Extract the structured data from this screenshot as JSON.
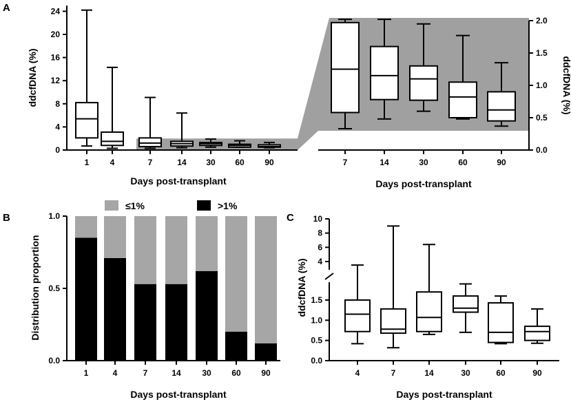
{
  "figure": {
    "panels": [
      "A",
      "B",
      "C"
    ],
    "zoom_fill": "#a0a0a0",
    "colors": {
      "gt1": "#000000",
      "le1": "#a6a6a6",
      "box": "#ffffff",
      "line": "#000000"
    }
  },
  "chart_data": [
    {
      "id": "A-main",
      "type": "box",
      "title": "",
      "xlabel": "Days post-transplant",
      "ylabel": "ddcfDNA (%)",
      "ylim": [
        0,
        25
      ],
      "yticks": [
        0,
        4,
        8,
        12,
        16,
        20,
        24
      ],
      "yticklabels": [
        "0",
        "4",
        "8",
        "12",
        "16",
        "20",
        "24"
      ],
      "categories": [
        "1",
        "4",
        "7",
        "14",
        "30",
        "60",
        "90"
      ],
      "boxes": [
        {
          "min": 0.7,
          "q1": 2.1,
          "median": 5.4,
          "q3": 8.2,
          "max": 24.2
        },
        {
          "min": 0.3,
          "q1": 0.8,
          "median": 1.5,
          "q3": 3.1,
          "max": 14.3
        },
        {
          "min": 0.3,
          "q1": 0.6,
          "median": 1.2,
          "q3": 2.1,
          "max": 9.1
        },
        {
          "min": 0.4,
          "q1": 0.7,
          "median": 1.1,
          "q3": 1.5,
          "max": 6.4
        },
        {
          "min": 0.5,
          "q1": 0.8,
          "median": 1.1,
          "q3": 1.3,
          "max": 1.9
        },
        {
          "min": 0.5,
          "q1": 0.5,
          "median": 0.8,
          "q3": 1.0,
          "max": 1.6
        },
        {
          "min": 0.4,
          "q1": 0.5,
          "median": 0.6,
          "q3": 0.9,
          "max": 1.3
        }
      ],
      "zoom_region": {
        "from_category": "7",
        "to_category": "90",
        "ymax": 2
      }
    },
    {
      "id": "A-zoom",
      "type": "box",
      "title": "",
      "xlabel": "Days post-transplant",
      "ylabel": "ddcfDNA (%)",
      "ylim": [
        0,
        2
      ],
      "yticks": [
        0,
        0.5,
        1.0,
        1.5,
        2.0
      ],
      "yticklabels": [
        "0.0",
        "0.5",
        "1.0",
        "1.5",
        "2.0"
      ],
      "y_axis_side": "right",
      "categories": [
        "7",
        "14",
        "30",
        "60",
        "90"
      ],
      "boxes": [
        {
          "min": 0.33,
          "q1": 0.58,
          "median": 1.25,
          "q3": 1.97,
          "max": 2.02
        },
        {
          "min": 0.48,
          "q1": 0.78,
          "median": 1.15,
          "q3": 1.6,
          "max": 2.02
        },
        {
          "min": 0.6,
          "q1": 0.77,
          "median": 1.1,
          "q3": 1.3,
          "max": 1.95
        },
        {
          "min": 0.48,
          "q1": 0.5,
          "median": 0.82,
          "q3": 1.05,
          "max": 1.77
        },
        {
          "min": 0.37,
          "q1": 0.45,
          "median": 0.62,
          "q3": 0.9,
          "max": 1.35
        }
      ]
    },
    {
      "id": "B",
      "type": "stacked-bar",
      "title": "",
      "xlabel": "Days post-transplant",
      "ylabel": "Distribution proportion",
      "ylim": [
        0,
        1
      ],
      "yticks": [
        0,
        0.5,
        1.0
      ],
      "yticklabels": [
        "0.0",
        "0.5",
        "1.0"
      ],
      "categories": [
        "1",
        "4",
        "7",
        "14",
        "30",
        "60",
        "90"
      ],
      "legend": [
        "≤1%",
        ">1%"
      ],
      "series": [
        {
          "name": ">1%",
          "values": [
            0.85,
            0.71,
            0.53,
            0.53,
            0.62,
            0.2,
            0.12
          ]
        },
        {
          "name": "≤1%",
          "values": [
            0.15,
            0.29,
            0.47,
            0.47,
            0.38,
            0.8,
            0.88
          ]
        }
      ]
    },
    {
      "id": "C",
      "type": "box",
      "title": "",
      "xlabel": "Days post-transplant",
      "ylabel": "ddcfDNA (%)",
      "ylim": [
        0,
        10
      ],
      "y_break": [
        1.9,
        2.8
      ],
      "yticks": [
        0,
        0.5,
        1.0,
        1.5,
        4,
        6,
        8,
        10
      ],
      "yticklabels": [
        "0.0",
        "0.5",
        "1.0",
        "1.5",
        "4",
        "6",
        "8",
        "10"
      ],
      "categories": [
        "4",
        "7",
        "14",
        "30",
        "60",
        "90"
      ],
      "boxes": [
        {
          "min": 0.42,
          "q1": 0.72,
          "median": 1.15,
          "q3": 1.5,
          "max": 3.5
        },
        {
          "min": 0.32,
          "q1": 0.68,
          "median": 0.78,
          "q3": 1.28,
          "max": 9.0
        },
        {
          "min": 0.65,
          "q1": 0.72,
          "median": 1.07,
          "q3": 1.7,
          "max": 6.4
        },
        {
          "min": 0.7,
          "q1": 1.2,
          "median": 1.3,
          "q3": 1.6,
          "max": 1.9
        },
        {
          "min": 0.42,
          "q1": 0.45,
          "median": 0.7,
          "q3": 1.43,
          "max": 1.6
        },
        {
          "min": 0.43,
          "q1": 0.5,
          "median": 0.72,
          "q3": 0.85,
          "max": 1.28
        }
      ]
    }
  ]
}
